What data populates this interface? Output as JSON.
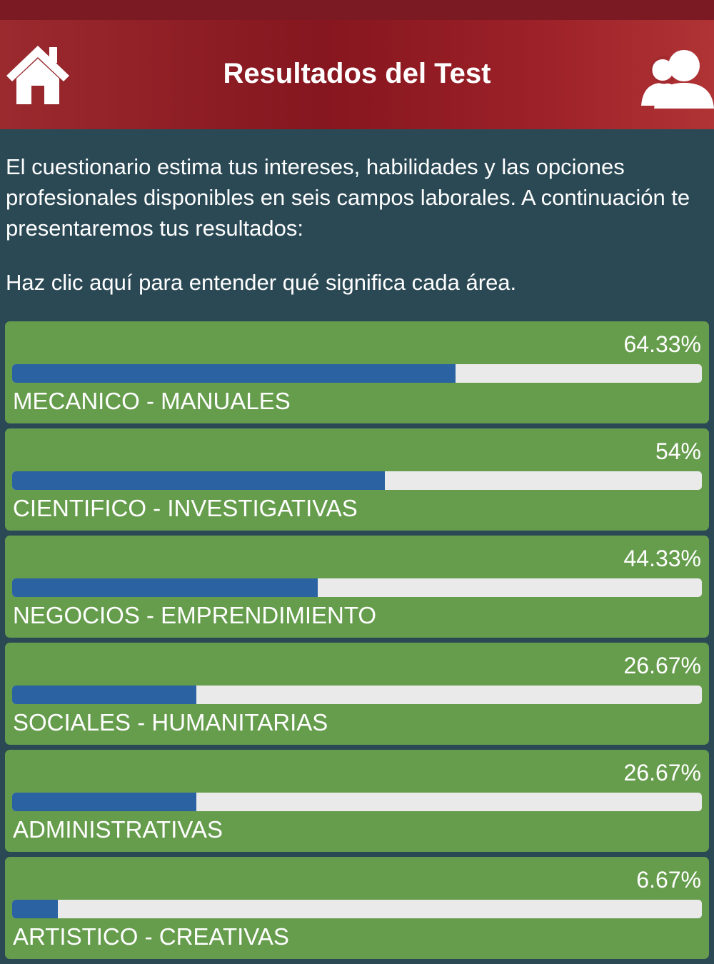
{
  "header": {
    "title": "Resultados del Test",
    "home_icon": "home-icon",
    "user_icon": "users-icon"
  },
  "intro": {
    "text": "El cuestionario estima tus intereses, habilidades y las opciones profesionales disponibles en seis campos laborales. A continuación te presentaremos tus resultados:",
    "help_link": "Haz clic aquí para entender qué significa cada área."
  },
  "results": [
    {
      "label": "MECANICO - MANUALES",
      "percent_text": "64.33%",
      "value": 64.33
    },
    {
      "label": "CIENTIFICO - INVESTIGATIVAS",
      "percent_text": "54%",
      "value": 54
    },
    {
      "label": "NEGOCIOS - EMPRENDIMIENTO",
      "percent_text": "44.33%",
      "value": 44.33
    },
    {
      "label": "SOCIALES - HUMANITARIAS",
      "percent_text": "26.67%",
      "value": 26.67
    },
    {
      "label": "ADMINISTRATIVAS",
      "percent_text": "26.67%",
      "value": 26.67
    },
    {
      "label": "ARTISTICO - CREATIVAS",
      "percent_text": "6.67%",
      "value": 6.67
    }
  ],
  "colors": {
    "header": "#8b1a24",
    "background": "#2b4955",
    "card": "#669d4d",
    "bar_fill": "#2a62a2",
    "bar_track": "#eaeaea"
  }
}
